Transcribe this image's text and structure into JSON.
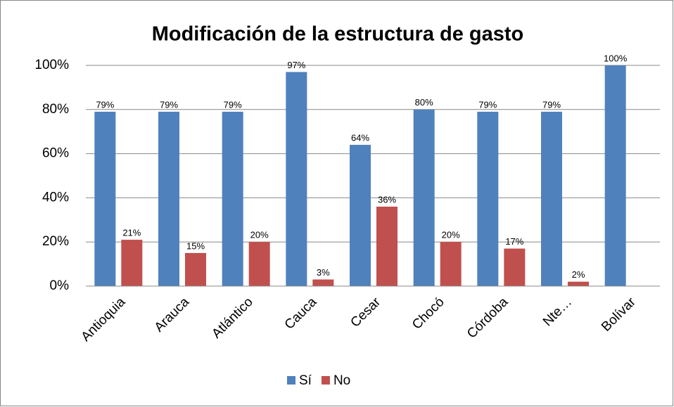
{
  "chart_data": {
    "type": "bar",
    "title": "Modificación de la estructura de gasto",
    "categories": [
      "Antioquia",
      "Arauca",
      "Atlántico",
      "Cauca",
      "Cesar",
      "Chocó",
      "Córdoba",
      "Nte…",
      "Bolívar"
    ],
    "series": [
      {
        "name": "Sí",
        "color": "#4f81bd",
        "values": [
          79,
          79,
          79,
          97,
          64,
          80,
          79,
          79,
          100
        ],
        "value_labels": [
          "79%",
          "79%",
          "79%",
          "97%",
          "64%",
          "80%",
          "79%",
          "79%",
          "100%"
        ]
      },
      {
        "name": "No",
        "color": "#c0504d",
        "values": [
          21,
          15,
          20,
          3,
          36,
          20,
          17,
          2,
          null
        ],
        "value_labels": [
          "21%",
          "15%",
          "20%",
          "3%",
          "36%",
          "20%",
          "17%",
          "2%",
          null
        ]
      }
    ],
    "ylim": [
      0,
      100
    ],
    "yticks": [
      {
        "value": 0,
        "label": "0%"
      },
      {
        "value": 20,
        "label": "20%"
      },
      {
        "value": 40,
        "label": "40%"
      },
      {
        "value": 60,
        "label": "60%"
      },
      {
        "value": 80,
        "label": "80%"
      },
      {
        "value": 100,
        "label": "100%"
      }
    ],
    "grid": true,
    "legend": "bottom"
  }
}
